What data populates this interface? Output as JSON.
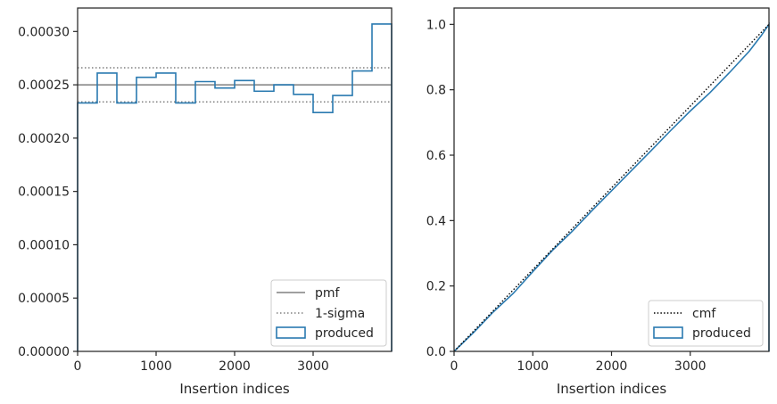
{
  "chart_data": [
    {
      "type": "histogram",
      "xlabel": "Insertion indices",
      "ylabel": "",
      "xlim": [
        0,
        4000
      ],
      "ylim": [
        0,
        0.000322
      ],
      "x_ticks": [
        0,
        1000,
        2000,
        3000
      ],
      "x_tick_labels": [
        "0",
        "1000",
        "2000",
        "3000"
      ],
      "y_ticks": [
        0,
        5e-05,
        0.0001,
        0.00015,
        0.0002,
        0.00025,
        0.0003
      ],
      "y_tick_labels": [
        "0.00000",
        "0.00005",
        "0.00010",
        "0.00015",
        "0.00020",
        "0.00025",
        "0.00030"
      ],
      "bin_edges": [
        0,
        250,
        500,
        750,
        1000,
        1250,
        1500,
        1750,
        2000,
        2250,
        2500,
        2750,
        3000,
        3250,
        3500,
        3750,
        4000
      ],
      "series": [
        {
          "name": "produced",
          "kind": "step",
          "values": [
            0.000233,
            0.000261,
            0.000233,
            0.000257,
            0.000261,
            0.000233,
            0.000253,
            0.000247,
            0.000254,
            0.000244,
            0.00025,
            0.000241,
            0.000224,
            0.00024,
            0.000263,
            0.000307
          ]
        },
        {
          "name": "pmf",
          "kind": "hline",
          "value": 0.00025
        },
        {
          "name": "1-sigma",
          "kind": "hline_pair",
          "values": [
            0.000234,
            0.000266
          ]
        }
      ],
      "legend": [
        "pmf",
        "1-sigma",
        "produced"
      ],
      "legend_position": "lower-right",
      "colors": {
        "produced": "#2a7ab0",
        "pmf": "#808080",
        "sigma": "#808080"
      }
    },
    {
      "type": "line",
      "xlabel": "Insertion indices",
      "ylabel": "",
      "xlim": [
        0,
        4000
      ],
      "ylim": [
        0,
        1.05
      ],
      "x_ticks": [
        0,
        1000,
        2000,
        3000
      ],
      "x_tick_labels": [
        "0",
        "1000",
        "2000",
        "3000"
      ],
      "y_ticks": [
        0,
        0.2,
        0.4,
        0.6,
        0.8,
        1.0
      ],
      "y_tick_labels": [
        "0.0",
        "0.2",
        "0.4",
        "0.6",
        "0.8",
        "1.0"
      ],
      "series": [
        {
          "name": "cmf",
          "kind": "dotted-line",
          "x": [
            0,
            4000
          ],
          "y": [
            0,
            1.0
          ]
        },
        {
          "name": "produced",
          "kind": "step",
          "x": [
            0,
            250,
            500,
            750,
            1000,
            1250,
            1500,
            1750,
            2000,
            2250,
            2500,
            2750,
            3000,
            3250,
            3500,
            3750,
            3900,
            4000
          ],
          "y": [
            0,
            0.058,
            0.121,
            0.177,
            0.244,
            0.309,
            0.367,
            0.43,
            0.491,
            0.552,
            0.613,
            0.675,
            0.735,
            0.791,
            0.853,
            0.918,
            0.965,
            1.0
          ]
        }
      ],
      "legend": [
        "cmf",
        "produced"
      ],
      "legend_position": "lower-right",
      "colors": {
        "produced": "#2a7ab0",
        "cmf": "#000000"
      }
    }
  ]
}
